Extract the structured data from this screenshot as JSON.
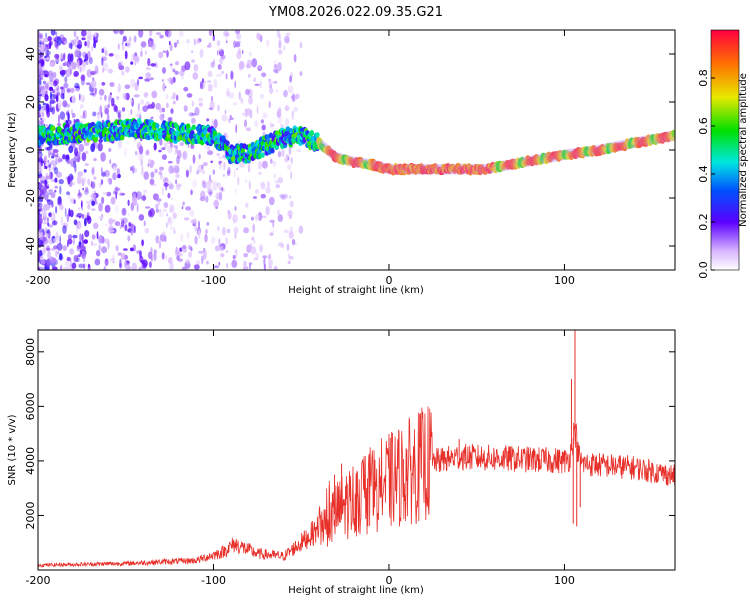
{
  "title": "YM08.2026.022.09.35.G21",
  "chart_data": [
    {
      "type": "heatmap",
      "name": "spectrogram",
      "xlabel": "Height of straight line (km)",
      "ylabel": "Frequency (Hz)",
      "xlim": [
        -200,
        163
      ],
      "ylim": [
        -50,
        50
      ],
      "xticks": [
        -200,
        -100,
        0,
        100
      ],
      "yticks": [
        -40,
        -20,
        0,
        20,
        40
      ],
      "ridge_track": {
        "x": [
          -200,
          -180,
          -160,
          -140,
          -120,
          -100,
          -90,
          -80,
          -70,
          -60,
          -50,
          -40,
          -30,
          -20,
          -10,
          0,
          20,
          40,
          55,
          70,
          85,
          100,
          120,
          140,
          163
        ],
        "y": [
          6,
          7,
          8,
          9,
          7,
          6,
          -2,
          -1,
          2,
          5,
          6,
          3,
          -3,
          -5,
          -6,
          -8,
          -8,
          -8,
          -8,
          -6,
          -4,
          -2,
          0,
          3,
          6
        ]
      },
      "colorbar": {
        "label": "Normalized spectral amplitude",
        "range": [
          0,
          1
        ],
        "ticks": [
          0.0,
          0.2,
          0.4,
          0.6,
          0.8
        ],
        "tick_labels": [
          "0.0",
          "0.2",
          "0.4",
          "0.6",
          "0.8"
        ]
      }
    },
    {
      "type": "line",
      "name": "snr",
      "xlabel": "Height of straight line (km)",
      "ylabel": "SNR (10 * v/v)",
      "xlim": [
        -200,
        163
      ],
      "ylim": [
        0,
        8800
      ],
      "xticks": [
        -200,
        -100,
        0,
        100
      ],
      "yticks": [
        2000,
        4000,
        6000,
        8000
      ],
      "color": "#e8302a",
      "envelope": {
        "x": [
          -200,
          -150,
          -110,
          -95,
          -88,
          -75,
          -60,
          -50,
          -35,
          -25,
          -15,
          -5,
          5,
          20,
          40,
          60,
          80,
          100,
          103,
          106,
          108,
          110,
          120,
          140,
          163
        ],
        "y": [
          180,
          240,
          350,
          650,
          950,
          600,
          500,
          1000,
          1800,
          2400,
          2800,
          3100,
          3400,
          3900,
          4150,
          4100,
          4050,
          4000,
          4100,
          5200,
          4200,
          3900,
          3850,
          3750,
          3450
        ]
      },
      "spikes": [
        {
          "x": -34,
          "y": 3100
        },
        {
          "x": -31,
          "y": 3500
        },
        {
          "x": -27,
          "y": 3900
        },
        {
          "x": -22,
          "y": 3400
        },
        {
          "x": -18,
          "y": 3600
        },
        {
          "x": 40,
          "y": 4800
        },
        {
          "x": 104,
          "y": 7000
        },
        {
          "x": 106,
          "y": 8800
        },
        {
          "x": 107,
          "y": 1600
        },
        {
          "x": 105,
          "y": 1700
        },
        {
          "x": 109,
          "y": 2300
        }
      ]
    }
  ]
}
